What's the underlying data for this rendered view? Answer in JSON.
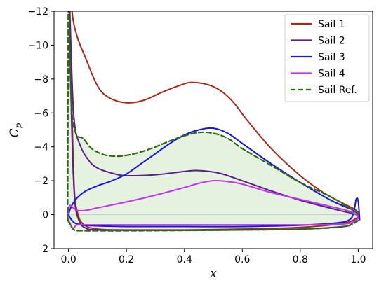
{
  "chart_data": {
    "type": "line",
    "xlabel": "x",
    "ylabel": "C",
    "ylabel_sub": "p",
    "xlim": [
      -0.05,
      1.05
    ],
    "ylim": [
      2,
      -12
    ],
    "y_inverted": true,
    "grid": false,
    "legend_position": "top-right",
    "xticks": [
      "0.0",
      "0.2",
      "0.4",
      "0.6",
      "0.8",
      "1.0"
    ],
    "xtick_values": [
      0.0,
      0.2,
      0.4,
      0.6,
      0.8,
      1.0
    ],
    "yticks": [
      "−12",
      "−10",
      "−8",
      "−6",
      "−4",
      "−2",
      "0",
      "2"
    ],
    "ytick_values": [
      -12,
      -10,
      -8,
      -6,
      -4,
      -2,
      0,
      2
    ],
    "series": [
      {
        "name": "Sail 1",
        "color": "#a52a1c",
        "dash": "solid",
        "upper": [
          [
            0.0,
            -15
          ],
          [
            0.012,
            -12
          ],
          [
            0.03,
            -10.5
          ],
          [
            0.06,
            -9.2
          ],
          [
            0.1,
            -7.6
          ],
          [
            0.14,
            -6.9
          ],
          [
            0.2,
            -6.6
          ],
          [
            0.26,
            -6.75
          ],
          [
            0.32,
            -7.2
          ],
          [
            0.38,
            -7.6
          ],
          [
            0.43,
            -7.8
          ],
          [
            0.5,
            -7.55
          ],
          [
            0.56,
            -6.8
          ],
          [
            0.62,
            -5.5
          ],
          [
            0.7,
            -3.9
          ],
          [
            0.8,
            -2.3
          ],
          [
            0.88,
            -1.3
          ],
          [
            0.95,
            -0.65
          ],
          [
            0.985,
            -0.35
          ],
          [
            1.0,
            -0.15
          ]
        ],
        "lower": [
          [
            0.0,
            -15
          ],
          [
            0.012,
            -6
          ],
          [
            0.02,
            -1.5
          ],
          [
            0.03,
            -0.2
          ],
          [
            0.05,
            0.55
          ],
          [
            0.1,
            0.85
          ],
          [
            0.2,
            0.9
          ],
          [
            0.4,
            0.9
          ],
          [
            0.6,
            0.85
          ],
          [
            0.8,
            0.75
          ],
          [
            0.95,
            0.5
          ],
          [
            1.0,
            0.15
          ]
        ]
      },
      {
        "name": "Sail 2",
        "color": "#5b1f8a",
        "dash": "solid",
        "upper": [
          [
            0.0,
            -15
          ],
          [
            0.01,
            -9
          ],
          [
            0.02,
            -5.5
          ],
          [
            0.04,
            -4.1
          ],
          [
            0.07,
            -3.2
          ],
          [
            0.1,
            -2.75
          ],
          [
            0.15,
            -2.45
          ],
          [
            0.2,
            -2.3
          ],
          [
            0.3,
            -2.35
          ],
          [
            0.4,
            -2.55
          ],
          [
            0.45,
            -2.6
          ],
          [
            0.52,
            -2.45
          ],
          [
            0.6,
            -2.0
          ],
          [
            0.7,
            -1.4
          ],
          [
            0.8,
            -0.85
          ],
          [
            0.9,
            -0.4
          ],
          [
            0.96,
            -0.15
          ],
          [
            1.0,
            0.0
          ]
        ],
        "lower": [
          [
            0.0,
            -15
          ],
          [
            0.01,
            -6
          ],
          [
            0.02,
            -1.2
          ],
          [
            0.035,
            0.3
          ],
          [
            0.06,
            0.8
          ],
          [
            0.1,
            0.9
          ],
          [
            0.2,
            0.92
          ],
          [
            0.4,
            0.92
          ],
          [
            0.6,
            0.9
          ],
          [
            0.8,
            0.85
          ],
          [
            0.95,
            0.7
          ],
          [
            0.98,
            0.5
          ],
          [
            1.0,
            0.2
          ]
        ]
      },
      {
        "name": "Sail 3",
        "color": "#1515e0",
        "dash": "solid",
        "upper": [
          [
            0.0,
            0.0
          ],
          [
            0.005,
            -0.3
          ],
          [
            0.015,
            -0.65
          ],
          [
            0.03,
            -1.0
          ],
          [
            0.06,
            -1.4
          ],
          [
            0.1,
            -1.7
          ],
          [
            0.15,
            -2.0
          ],
          [
            0.2,
            -2.4
          ],
          [
            0.25,
            -3.0
          ],
          [
            0.3,
            -3.6
          ],
          [
            0.35,
            -4.2
          ],
          [
            0.4,
            -4.7
          ],
          [
            0.45,
            -5.0
          ],
          [
            0.5,
            -5.1
          ],
          [
            0.55,
            -4.8
          ],
          [
            0.6,
            -4.2
          ],
          [
            0.7,
            -3.0
          ],
          [
            0.8,
            -1.9
          ],
          [
            0.9,
            -0.9
          ],
          [
            0.95,
            -0.5
          ],
          [
            0.98,
            -0.3
          ]
        ],
        "lower": [
          [
            0.0,
            0.0
          ],
          [
            0.01,
            0.3
          ],
          [
            0.03,
            0.55
          ],
          [
            0.08,
            0.65
          ],
          [
            0.2,
            0.7
          ],
          [
            0.4,
            0.7
          ],
          [
            0.6,
            0.7
          ],
          [
            0.8,
            0.62
          ],
          [
            0.92,
            0.5
          ],
          [
            0.97,
            0.3
          ],
          [
            0.985,
            -0.2
          ],
          [
            0.993,
            -0.9
          ],
          [
            1.0,
            -0.8
          ],
          [
            1.005,
            0.3
          ]
        ]
      },
      {
        "name": "Sail 4",
        "color": "#c034f0",
        "dash": "solid",
        "upper": [
          [
            -0.003,
            0.2
          ],
          [
            0.0,
            -0.3
          ],
          [
            0.005,
            -0.55
          ],
          [
            0.012,
            -0.45
          ],
          [
            0.03,
            -0.25
          ],
          [
            0.06,
            -0.25
          ],
          [
            0.1,
            -0.4
          ],
          [
            0.2,
            -0.75
          ],
          [
            0.3,
            -1.15
          ],
          [
            0.4,
            -1.6
          ],
          [
            0.45,
            -1.85
          ],
          [
            0.5,
            -2.0
          ],
          [
            0.55,
            -1.95
          ],
          [
            0.6,
            -1.8
          ],
          [
            0.7,
            -1.3
          ],
          [
            0.8,
            -0.9
          ],
          [
            0.9,
            -0.5
          ],
          [
            0.97,
            -0.2
          ],
          [
            1.0,
            0.1
          ]
        ],
        "lower": [
          [
            -0.003,
            0.2
          ],
          [
            0.005,
            0.5
          ],
          [
            0.015,
            0.8
          ],
          [
            0.03,
            0.6
          ],
          [
            0.06,
            0.6
          ],
          [
            0.2,
            0.6
          ],
          [
            0.4,
            0.6
          ],
          [
            0.6,
            0.6
          ],
          [
            0.8,
            0.6
          ],
          [
            0.95,
            0.55
          ],
          [
            0.99,
            0.35
          ],
          [
            1.0,
            0.1
          ]
        ]
      },
      {
        "name": "Sail Ref.",
        "color": "#2d6a0f",
        "dash": "dashed",
        "fill": "#dcedd6",
        "upper": [
          [
            -0.003,
            0.3
          ],
          [
            0.0,
            -15
          ],
          [
            0.003,
            -11
          ],
          [
            0.01,
            -6.5
          ],
          [
            0.025,
            -4.8
          ],
          [
            0.05,
            -4.5
          ],
          [
            0.08,
            -3.9
          ],
          [
            0.12,
            -3.55
          ],
          [
            0.16,
            -3.45
          ],
          [
            0.2,
            -3.5
          ],
          [
            0.25,
            -3.7
          ],
          [
            0.3,
            -4.0
          ],
          [
            0.35,
            -4.35
          ],
          [
            0.4,
            -4.65
          ],
          [
            0.45,
            -4.85
          ],
          [
            0.5,
            -4.8
          ],
          [
            0.55,
            -4.5
          ],
          [
            0.6,
            -3.9
          ],
          [
            0.7,
            -2.9
          ],
          [
            0.8,
            -1.9
          ],
          [
            0.9,
            -1.1
          ],
          [
            0.95,
            -0.6
          ],
          [
            1.0,
            -0.05
          ]
        ],
        "lower": [
          [
            -0.003,
            0.3
          ],
          [
            0.005,
            0.55
          ],
          [
            0.02,
            0.9
          ],
          [
            0.05,
            0.95
          ],
          [
            0.1,
            0.95
          ],
          [
            0.2,
            0.95
          ],
          [
            0.4,
            0.93
          ],
          [
            0.6,
            0.9
          ],
          [
            0.8,
            0.85
          ],
          [
            0.95,
            0.7
          ],
          [
            1.0,
            0.35
          ]
        ]
      }
    ]
  }
}
